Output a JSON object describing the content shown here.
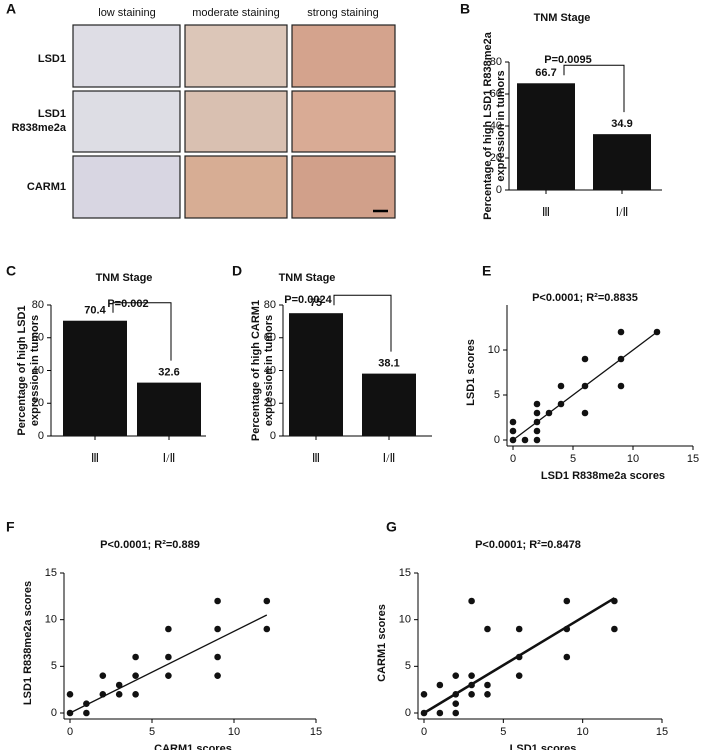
{
  "staining_panel": {
    "panel": "A",
    "columns": [
      "low staining",
      "moderate staining",
      "strong staining"
    ],
    "rows": [
      [
        "LSD1"
      ],
      [
        "LSD1",
        "R838me2a"
      ],
      [
        "CARM1"
      ]
    ]
  },
  "chart_data": [
    {
      "type": "bar",
      "panel": "B",
      "title": "TNM Stage",
      "annotation": "P=0.0095",
      "categories": [
        "Ⅲ",
        "Ⅰ/Ⅱ"
      ],
      "values": [
        66.7,
        34.9
      ],
      "color": "#111111",
      "ylabel": [
        "Percentage of high LSD1 R838me2a",
        "expression in tumors"
      ],
      "ylim": [
        0,
        80
      ],
      "yticks": [
        0,
        20,
        40,
        60,
        80
      ]
    },
    {
      "type": "bar",
      "panel": "C",
      "title": "TNM Stage",
      "annotation": "P=0.002",
      "categories": [
        "Ⅲ",
        "Ⅰ/Ⅱ"
      ],
      "values": [
        70.4,
        32.6
      ],
      "color": "#111111",
      "ylabel": [
        "Percentage of high LSD1",
        "expression in tumors"
      ],
      "ylim": [
        0,
        80
      ],
      "yticks": [
        0,
        20,
        40,
        60,
        80
      ]
    },
    {
      "type": "bar",
      "panel": "D",
      "title": "TNM Stage",
      "annotation": "P=0.0024",
      "categories": [
        "Ⅲ",
        "Ⅰ/Ⅱ"
      ],
      "values": [
        75,
        38.1
      ],
      "color": "#111111",
      "ylabel": [
        "Percentage of high CARM1",
        "expression in tumors"
      ],
      "ylim": [
        0,
        80
      ],
      "yticks": [
        0,
        20,
        40,
        60,
        80
      ]
    },
    {
      "type": "scatter",
      "panel": "E",
      "title": "P<0.0001; R²=0.8835",
      "xlabel": "LSD1 R838me2a scores",
      "ylabel": "LSD1 scores",
      "color": "#111111",
      "x": [
        0,
        0,
        0,
        1,
        2,
        2,
        2,
        2,
        2,
        3,
        4,
        4,
        6,
        6,
        6,
        9,
        9,
        9,
        12
      ],
      "y": [
        0,
        1,
        2,
        0,
        0,
        1,
        2,
        3,
        4,
        3,
        4,
        6,
        3,
        6,
        9,
        6,
        9,
        12,
        12
      ],
      "fit_line": {
        "x": [
          0,
          12
        ],
        "y": [
          0,
          12
        ]
      },
      "xlim": [
        0,
        15
      ],
      "ylim": [
        0,
        15
      ],
      "xticks": [
        0,
        5,
        10,
        15
      ],
      "yticks": [
        0,
        5,
        10
      ]
    },
    {
      "type": "scatter",
      "panel": "F",
      "title": "P<0.0001; R²=0.889",
      "xlabel": "CARM1 scores",
      "ylabel": "LSD1 R838me2a scores",
      "color": "#111111",
      "x": [
        0,
        0,
        1,
        1,
        2,
        2,
        3,
        3,
        4,
        4,
        4,
        6,
        6,
        6,
        9,
        9,
        9,
        9,
        12,
        12
      ],
      "y": [
        0,
        2,
        0,
        1,
        2,
        4,
        2,
        3,
        2,
        4,
        6,
        4,
        6,
        9,
        4,
        6,
        9,
        12,
        9,
        12
      ],
      "fit_line": {
        "x": [
          0,
          12
        ],
        "y": [
          0,
          10.5
        ]
      },
      "xlim": [
        0,
        15
      ],
      "ylim": [
        0,
        15
      ],
      "xticks": [
        0,
        5,
        10,
        15
      ],
      "yticks": [
        0,
        5,
        10,
        15
      ]
    },
    {
      "type": "scatter",
      "panel": "G",
      "title": "P<0.0001; R²=0.8478",
      "xlabel": "LSD1 scores",
      "ylabel": "CARM1 scores",
      "color": "#111111",
      "x": [
        0,
        0,
        1,
        1,
        2,
        2,
        2,
        2,
        3,
        3,
        3,
        3,
        4,
        4,
        4,
        6,
        6,
        6,
        9,
        9,
        9,
        12,
        12
      ],
      "y": [
        0,
        2,
        0,
        3,
        0,
        1,
        2,
        4,
        2,
        3,
        4,
        12,
        2,
        3,
        9,
        4,
        6,
        9,
        6,
        9,
        12,
        9,
        12
      ],
      "fit_line": {
        "x": [
          0,
          12
        ],
        "y": [
          0,
          12.3
        ]
      },
      "xlim": [
        0,
        15
      ],
      "ylim": [
        0,
        15
      ],
      "xticks": [
        0,
        5,
        10,
        15
      ],
      "yticks": [
        0,
        5,
        10,
        15
      ]
    }
  ]
}
